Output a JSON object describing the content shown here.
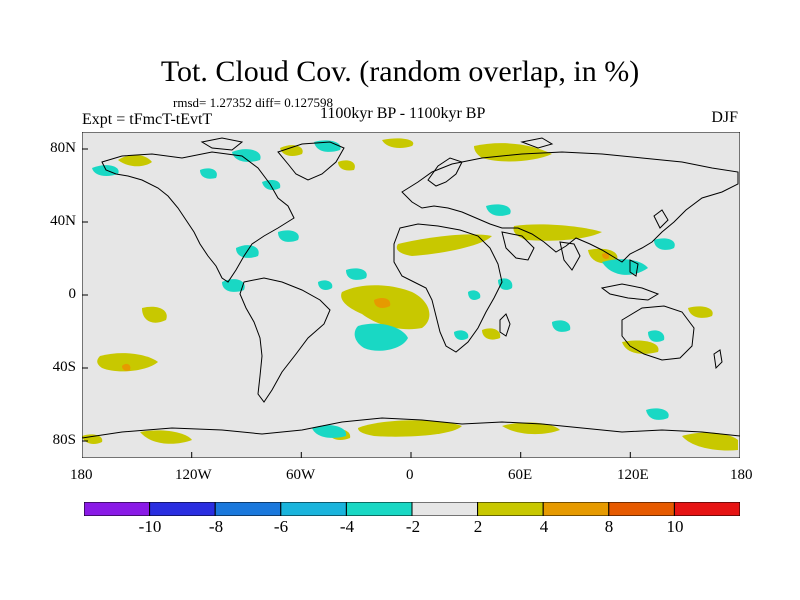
{
  "title": "Tot. Cloud Cov. (random overlap, in %)",
  "stats": "rmsd= 1.27352 diff= 0.127598",
  "experiment": "Expt = tFmcT-tEvtT",
  "period": "1100kyr BP - 1100kyr BP",
  "season": "DJF",
  "x_ticks": [
    "180",
    "120W",
    "60W",
    "0",
    "60E",
    "120E",
    "180"
  ],
  "y_ticks": [
    "80N",
    "40N",
    "0",
    "40S",
    "80S"
  ],
  "colorbar": {
    "labels": [
      "-10",
      "-8",
      "-6",
      "-4",
      "-2",
      "2",
      "4",
      "8",
      "10"
    ],
    "colors": [
      "#8a1ae6",
      "#2a2ee0",
      "#1a78dc",
      "#1ab4dc",
      "#19d8c4",
      "#e6e6e6",
      "#c8c800",
      "#e69a00",
      "#e65a00",
      "#e61414"
    ]
  },
  "colors": {
    "map_background": "#e6e6e6",
    "negative_small": "#19d8c4",
    "positive_small": "#c8c800",
    "positive_mid": "#e69a00",
    "coastline": "#000000"
  }
}
